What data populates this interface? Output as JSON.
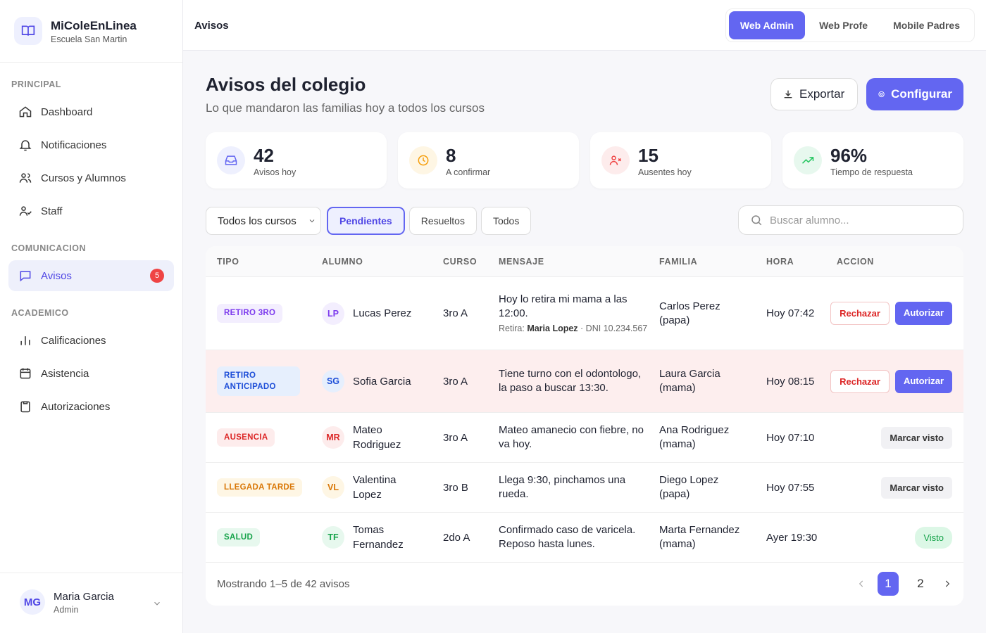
{
  "sidebar": {
    "brand": "MiColeEnLinea",
    "school": "Escuela San Martin",
    "sections": [
      {
        "title": "PRINCIPAL",
        "items": [
          {
            "label": "Dashboard"
          },
          {
            "label": "Notificaciones"
          },
          {
            "label": "Cursos y Alumnos"
          },
          {
            "label": "Staff"
          }
        ]
      },
      {
        "title": "COMUNICACION",
        "items": [
          {
            "label": "Avisos",
            "badge": 5,
            "active": true
          }
        ]
      },
      {
        "title": "ACADEMICO",
        "items": [
          {
            "label": "Calificaciones"
          },
          {
            "label": "Asistencia"
          },
          {
            "label": "Autorizaciones"
          }
        ]
      }
    ],
    "user": {
      "initials": "MG",
      "name": "Maria Garcia",
      "role": "Admin"
    }
  },
  "topbar": {
    "title": "Avisos",
    "tabs": [
      "Web Admin",
      "Web Profe",
      "Mobile Padres"
    ]
  },
  "header": {
    "title": "Avisos del colegio",
    "subtitle": "Lo que mandaron las familias hoy a todos los cursos",
    "export": "Exportar",
    "configure": "Configurar"
  },
  "stats": [
    {
      "value": "42",
      "label": "Avisos hoy",
      "color": "#6366f1",
      "bg": "#eef0fe"
    },
    {
      "value": "8",
      "label": "A confirmar",
      "color": "#f59e0b",
      "bg": "#fef6e4"
    },
    {
      "value": "15",
      "label": "Ausentes hoy",
      "color": "#ef4444",
      "bg": "#fdecec"
    },
    {
      "value": "96%",
      "label": "Tiempo de respuesta",
      "color": "#22c55e",
      "bg": "#e7f8ee"
    }
  ],
  "filters": {
    "course": "Todos los cursos",
    "tabs": [
      "Pendientes",
      "Resueltos",
      "Todos"
    ],
    "search": "Buscar alumno..."
  },
  "table": {
    "columns": [
      "TIPO",
      "ALUMNO",
      "CURSO",
      "MENSAJE",
      "FAMILIA",
      "HORA",
      "ACCION"
    ],
    "rows": [
      {
        "tipo": "RETIRO 3RO",
        "color": "#7c3aed",
        "bg": "#f3eefe",
        "initials": "LP",
        "alumno": "Lucas Perez",
        "curso": "3ro A",
        "mensaje": "Hoy lo retira mi mama a las 12:00.",
        "retira": {
          "label": "Retira:",
          "name": "Maria Lopez",
          "dni": "· DNI 10.234.567"
        },
        "familia": "Carlos Perez (papa)",
        "hora": "Hoy 07:42",
        "actions": [
          {
            "label": "Rechazar",
            "style": "outline"
          },
          {
            "label": "Autorizar",
            "style": "filled"
          }
        ]
      },
      {
        "tipo": "RETIRO ANTICIPADO",
        "color": "#1d4ed8",
        "bg": "#e6effd",
        "initials": "SG",
        "alumno": "Sofia Garcia",
        "curso": "3ro A",
        "mensaje": "Tiene turno con el odontologo, la paso a buscar 13:30.",
        "familia": "Laura Garcia (mama)",
        "hora": "Hoy 08:15",
        "highlight": true,
        "actions": [
          {
            "label": "Rechazar",
            "style": "outline"
          },
          {
            "label": "Autorizar",
            "style": "filled"
          }
        ]
      },
      {
        "tipo": "AUSENCIA",
        "color": "#dc2626",
        "bg": "#fdecec",
        "initials": "MR",
        "alumno": "Mateo Rodriguez",
        "curso": "3ro A",
        "mensaje": "Mateo amanecio con fiebre, no va hoy.",
        "familia": "Ana Rodriguez (mama)",
        "hora": "Hoy 07:10",
        "actions": [
          {
            "label": "Marcar visto",
            "style": "soft"
          }
        ]
      },
      {
        "tipo": "LLEGADA TARDE",
        "color": "#d97706",
        "bg": "#fef6e4",
        "initials": "VL",
        "alumno": "Valentina Lopez",
        "curso": "3ro B",
        "mensaje": "Llega 9:30, pinchamos una rueda.",
        "familia": "Diego Lopez (papa)",
        "hora": "Hoy 07:55",
        "actions": [
          {
            "label": "Marcar visto",
            "style": "soft"
          }
        ]
      },
      {
        "tipo": "SALUD",
        "color": "#16a34a",
        "bg": "#e7f8ee",
        "initials": "TF",
        "alumno": "Tomas Fernandez",
        "curso": "2do A",
        "mensaje": "Confirmado caso de varicela. Reposo hasta lunes.",
        "familia": "Marta Fernandez (mama)",
        "hora": "Ayer 19:30",
        "actions": [
          {
            "label": "Visto",
            "style": "success"
          }
        ]
      }
    ]
  },
  "footer": {
    "showing": "Mostrando 1–5 de 42 avisos",
    "pages": [
      1,
      2
    ]
  }
}
